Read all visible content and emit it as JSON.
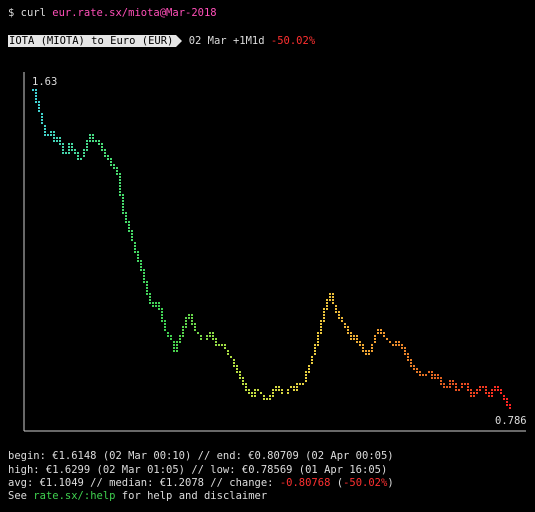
{
  "command": {
    "prompt": "$ curl ",
    "url": "eur.rate.sx/miota@Mar-2018"
  },
  "header": {
    "pair_label": "IOTA (MIOTA) to Euro (EUR)",
    "range": " 02 Mar +1M1d ",
    "change": "-50.02%"
  },
  "chart_data": {
    "type": "line",
    "ylim": [
      0.786,
      1.63
    ],
    "max_label": "1.63",
    "min_label": "0.786",
    "values": [
      1.63,
      1.59,
      1.56,
      1.52,
      1.5,
      1.52,
      1.49,
      1.51,
      1.47,
      1.45,
      1.49,
      1.47,
      1.46,
      1.44,
      1.46,
      1.49,
      1.51,
      1.49,
      1.5,
      1.48,
      1.46,
      1.45,
      1.43,
      1.42,
      1.4,
      1.32,
      1.29,
      1.26,
      1.23,
      1.2,
      1.17,
      1.14,
      1.1,
      1.07,
      1.06,
      1.07,
      1.04,
      1.0,
      0.98,
      0.97,
      0.94,
      0.97,
      0.99,
      1.02,
      1.04,
      1.01,
      0.99,
      0.98,
      0.96,
      0.98,
      0.99,
      0.97,
      0.95,
      0.96,
      0.95,
      0.93,
      0.92,
      0.9,
      0.88,
      0.86,
      0.84,
      0.83,
      0.82,
      0.84,
      0.83,
      0.82,
      0.81,
      0.82,
      0.84,
      0.85,
      0.83,
      0.82,
      0.84,
      0.85,
      0.83,
      0.86,
      0.84,
      0.88,
      0.9,
      0.93,
      0.96,
      1.0,
      1.04,
      1.07,
      1.09,
      1.06,
      1.04,
      1.02,
      1.01,
      0.99,
      0.97,
      0.98,
      0.96,
      0.95,
      0.93,
      0.94,
      0.96,
      0.99,
      1.0,
      0.98,
      0.97,
      0.96,
      0.95,
      0.97,
      0.95,
      0.94,
      0.92,
      0.9,
      0.89,
      0.88,
      0.87,
      0.88,
      0.89,
      0.87,
      0.88,
      0.86,
      0.85,
      0.84,
      0.86,
      0.85,
      0.83,
      0.85,
      0.86,
      0.84,
      0.82,
      0.83,
      0.84,
      0.85,
      0.83,
      0.82,
      0.84,
      0.85,
      0.83,
      0.82,
      0.8,
      0.786
    ]
  },
  "footer": {
    "line1": "begin: €1.6148 (02 Mar 00:10) // end: €0.80709 (02 Apr 00:05)",
    "line2": "high: €1.6299 (02 Mar 01:05) // low: €0.78569 (01 Apr 16:05)",
    "line3_prefix": "avg: €1.1049 // median: €1.2078 // change: ",
    "line3_change": "-0.80768",
    "line3_pct_open": " (",
    "line3_pct": "-50.02%",
    "line3_pct_close": ")",
    "line4_prefix": "See ",
    "line4_link": "rate.sx/:help",
    "line4_suffix": " for help and disclaimer"
  },
  "colors": {
    "background": "#000000",
    "text": "#dcdcdc",
    "url": "#ff4fb8",
    "negative": "#ff3030",
    "link": "#3fd04f",
    "gradient": [
      "#40d0d8",
      "#48dc78",
      "#3fd04f",
      "#b8e040",
      "#e8d040",
      "#f0a030",
      "#e06020",
      "#ff2020"
    ]
  }
}
